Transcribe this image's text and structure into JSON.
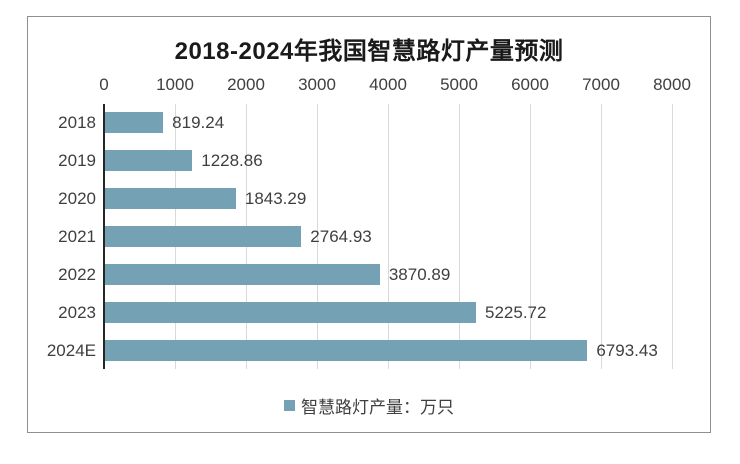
{
  "chart_data": {
    "type": "bar",
    "orientation": "horizontal",
    "title": "2018-2024年我国智慧路灯产量预测",
    "categories": [
      "2018",
      "2019",
      "2020",
      "2021",
      "2022",
      "2023",
      "2024E"
    ],
    "values": [
      819.24,
      1228.86,
      1843.29,
      2764.93,
      3870.89,
      5225.72,
      6793.43
    ],
    "value_labels": [
      "819.24",
      "1228.86",
      "1843.29",
      "2764.93",
      "3870.89",
      "5225.72",
      "6793.43"
    ],
    "legend": "智慧路灯产量：万只",
    "xlabel": "",
    "ylabel": "",
    "xlim": [
      0,
      8000
    ],
    "xticks": [
      0,
      1000,
      2000,
      3000,
      4000,
      5000,
      6000,
      7000,
      8000
    ],
    "xtick_labels": [
      "0",
      "1000",
      "2000",
      "3000",
      "4000",
      "5000",
      "6000",
      "7000",
      "8000"
    ],
    "grid": "vertical-only",
    "axis_position": "top",
    "legend_position": "bottom-center",
    "colors": {
      "bar": "#74a2b4",
      "grid": "#d9d9d9",
      "axis": "#262626",
      "text": "#3f3f3f",
      "title": "#1a1a1a",
      "frame_border": "#8f8f8f",
      "background": "#ffffff"
    }
  }
}
